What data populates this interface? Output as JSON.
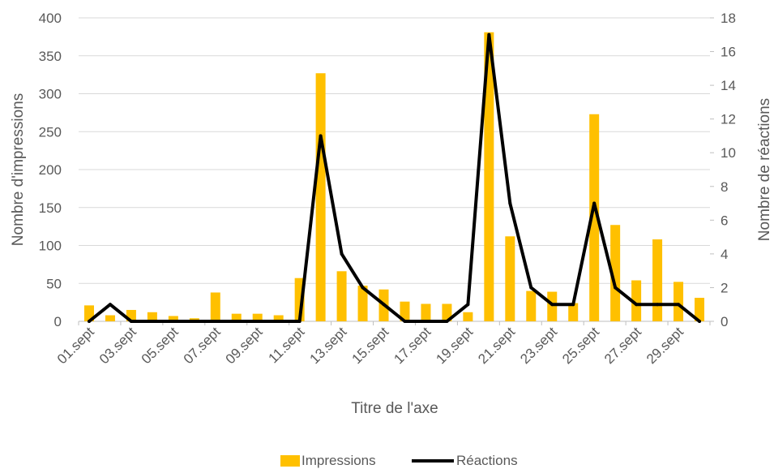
{
  "chart_data": {
    "type": "bar",
    "x_tick_labels": [
      "01.sept",
      "03.sept",
      "05.sept",
      "07.sept",
      "09.sept",
      "11.sept",
      "13.sept",
      "15.sept",
      "17.sept",
      "19.sept",
      "21.sept",
      "23.sept",
      "25.sept",
      "27.sept",
      "29.sept"
    ],
    "x_tick_label_interval": 2,
    "series": [
      {
        "name": "Impressions",
        "type": "bar",
        "axis": "left",
        "color": "#FFC000",
        "values": [
          21,
          8,
          15,
          12,
          7,
          4,
          38,
          10,
          10,
          8,
          57,
          327,
          66,
          47,
          42,
          26,
          23,
          23,
          12,
          381,
          112,
          40,
          39,
          24,
          273,
          127,
          54,
          108,
          52,
          31
        ]
      },
      {
        "name": "Réactions",
        "type": "line",
        "axis": "right",
        "color": "#000000",
        "values": [
          0,
          1,
          0,
          0,
          0,
          0,
          0,
          0,
          0,
          0,
          0,
          11,
          4,
          2,
          1,
          0,
          0,
          0,
          1,
          17,
          7,
          2,
          1,
          1,
          7,
          2,
          1,
          1,
          1,
          0
        ]
      }
    ],
    "xlabel": "Titre de l'axe",
    "ylabel": "Nombre d'impressions",
    "y2label": "Nombre de réactions",
    "ylim": [
      0,
      400
    ],
    "y2lim": [
      0,
      18
    ],
    "yticks": [
      0,
      50,
      100,
      150,
      200,
      250,
      300,
      350,
      400
    ],
    "y2ticks": [
      0,
      2,
      4,
      6,
      8,
      10,
      12,
      14,
      16,
      18
    ],
    "grid": true,
    "legend": "bottom"
  }
}
